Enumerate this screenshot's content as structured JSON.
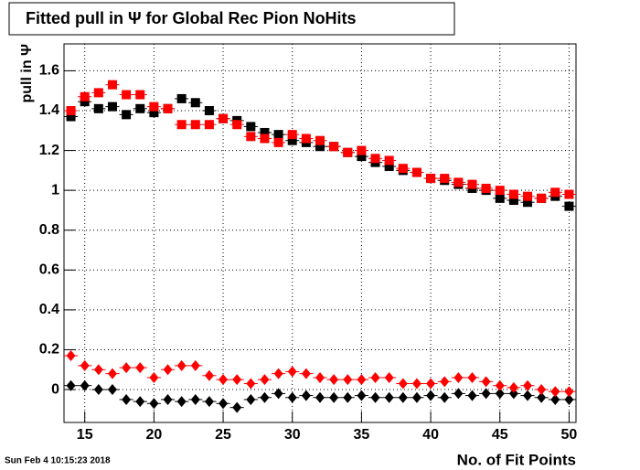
{
  "chart_data": {
    "type": "scatter",
    "title": "Fitted pull in  Ψ  for Global Rec Pion NoHits",
    "y_label": "pull in  Ψ",
    "x_label": "No. of Fit Points",
    "timestamp": "Sun Feb  4 10:15:23 2018",
    "x": [
      14,
      15,
      16,
      17,
      18,
      19,
      20,
      21,
      22,
      23,
      24,
      25,
      26,
      27,
      28,
      29,
      30,
      31,
      32,
      33,
      34,
      35,
      36,
      37,
      38,
      39,
      40,
      41,
      42,
      43,
      44,
      45,
      46,
      47,
      48,
      49,
      50
    ],
    "series": [
      {
        "color": "#000000",
        "marker": "square",
        "values": [
          1.37,
          1.445,
          1.41,
          1.42,
          1.38,
          1.41,
          1.39,
          1.41,
          1.46,
          1.44,
          1.4,
          1.36,
          1.35,
          1.32,
          1.29,
          1.28,
          1.25,
          1.24,
          1.22,
          1.22,
          1.19,
          1.17,
          1.14,
          1.12,
          1.1,
          1.09,
          1.06,
          1.05,
          1.03,
          1.01,
          1.0,
          0.96,
          0.95,
          0.94,
          0.96,
          0.97,
          0.92
        ]
      },
      {
        "color": "#ff0000",
        "marker": "square",
        "values": [
          1.4,
          1.47,
          1.49,
          1.53,
          1.48,
          1.48,
          1.42,
          1.41,
          1.33,
          1.33,
          1.33,
          1.36,
          1.33,
          1.27,
          1.26,
          1.24,
          1.28,
          1.26,
          1.25,
          1.22,
          1.19,
          1.2,
          1.16,
          1.15,
          1.11,
          1.09,
          1.06,
          1.06,
          1.04,
          1.03,
          1.01,
          1.0,
          0.98,
          0.97,
          0.96,
          0.99,
          0.98
        ]
      },
      {
        "color": "#000000",
        "marker": "diamond",
        "values": [
          0.02,
          0.02,
          0,
          0,
          -0.05,
          -0.06,
          -0.07,
          -0.05,
          -0.06,
          -0.05,
          -0.06,
          -0.07,
          -0.09,
          -0.05,
          -0.04,
          -0.02,
          -0.04,
          -0.03,
          -0.04,
          -0.04,
          -0.04,
          -0.03,
          -0.04,
          -0.04,
          -0.04,
          -0.04,
          -0.03,
          -0.04,
          -0.02,
          -0.03,
          -0.02,
          -0.02,
          -0.02,
          -0.03,
          -0.04,
          -0.05,
          -0.05
        ]
      },
      {
        "color": "#ff0000",
        "marker": "diamond",
        "values": [
          0.17,
          0.12,
          0.1,
          0.08,
          0.11,
          0.11,
          0.06,
          0.1,
          0.12,
          0.12,
          0.07,
          0.05,
          0.05,
          0.03,
          0.05,
          0.08,
          0.09,
          0.08,
          0.06,
          0.05,
          0.05,
          0.05,
          0.06,
          0.06,
          0.03,
          0.03,
          0.03,
          0.04,
          0.06,
          0.06,
          0.04,
          0.02,
          0.01,
          0.02,
          0,
          -0.01,
          -0.01
        ]
      }
    ],
    "xlim": [
      13.5,
      50.5
    ],
    "xticks": [
      15,
      20,
      25,
      30,
      35,
      40,
      45,
      50
    ],
    "ylim": [
      -0.165,
      1.735
    ],
    "yticks": [
      0,
      0.2,
      0.4,
      0.6,
      0.8,
      1,
      1.2,
      1.4,
      1.6
    ],
    "grid": true
  }
}
